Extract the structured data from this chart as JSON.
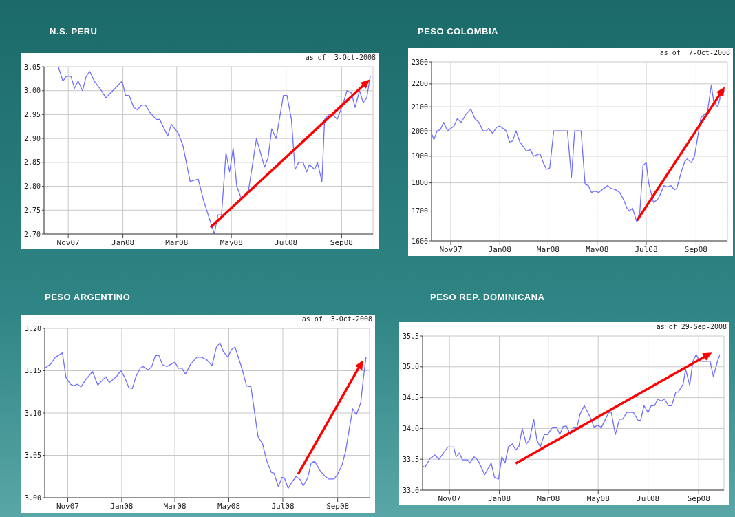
{
  "chart_data": [
    {
      "type": "line",
      "title": "N.S. PERU",
      "annotations": [
        "as of  3-Oct-2008"
      ],
      "xlim": [
        "2007-10-05",
        "2008-10-06"
      ],
      "xticks": [
        {
          "value": "2007-11-01",
          "label": "Nov07"
        },
        {
          "value": "2008-01-01",
          "label": "Jan08"
        },
        {
          "value": "2008-03-01",
          "label": "Mar08"
        },
        {
          "value": "2008-05-01",
          "label": "May08"
        },
        {
          "value": "2008-07-01",
          "label": "Jul08"
        },
        {
          "value": "2008-09-01",
          "label": "Sep08"
        }
      ],
      "ylim": [
        2.7,
        3.05
      ],
      "yticks": [
        {
          "value": 2.7,
          "label": "2.70"
        },
        {
          "value": 2.75,
          "label": "2.75"
        },
        {
          "value": 2.8,
          "label": "2.80"
        },
        {
          "value": 2.85,
          "label": "2.85"
        },
        {
          "value": 2.9,
          "label": "2.90"
        },
        {
          "value": 2.95,
          "label": "2.95"
        },
        {
          "value": 3.0,
          "label": "3.00"
        },
        {
          "value": 3.05,
          "label": "3.05"
        }
      ],
      "grid": true,
      "marker": "none",
      "series": [
        {
          "color": "#6f6fff",
          "x": [
            "2007-10-06",
            "2007-10-21",
            "2007-10-26",
            "2007-10-30",
            "2007-11-04",
            "2007-11-08",
            "2007-11-12",
            "2007-11-17",
            "2007-11-21",
            "2007-11-25",
            "2007-11-30",
            "2007-12-08",
            "2007-12-13",
            "2007-12-18",
            "2007-12-26",
            "2007-12-31",
            "2008-01-04",
            "2008-01-08",
            "2008-01-13",
            "2008-01-17",
            "2008-01-22",
            "2008-01-26",
            "2008-01-31",
            "2008-02-07",
            "2008-02-11",
            "2008-02-20",
            "2008-02-24",
            "2008-03-03",
            "2008-03-08",
            "2008-03-16",
            "2008-03-25",
            "2008-03-31",
            "2008-04-12",
            "2008-04-16",
            "2008-04-20",
            "2008-04-25",
            "2008-04-29",
            "2008-05-03",
            "2008-05-07",
            "2008-05-12",
            "2008-05-20",
            "2008-05-29",
            "2008-06-07",
            "2008-06-11",
            "2008-06-15",
            "2008-06-20",
            "2008-06-28",
            "2008-07-02",
            "2008-07-07",
            "2008-07-11",
            "2008-07-15",
            "2008-07-20",
            "2008-07-24",
            "2008-07-27",
            "2008-08-02",
            "2008-08-05",
            "2008-08-10",
            "2008-08-13",
            "2008-08-18",
            "2008-08-22",
            "2008-08-27",
            "2008-09-03",
            "2008-09-07",
            "2008-09-12",
            "2008-09-16",
            "2008-09-21",
            "2008-09-25",
            "2008-09-29",
            "2008-10-03"
          ],
          "values": [
            3.05,
            3.05,
            3.02,
            3.03,
            3.03,
            3.005,
            3.02,
            3.0,
            3.03,
            3.04,
            3.02,
            3.0,
            2.985,
            2.995,
            3.01,
            3.02,
            2.99,
            2.99,
            2.965,
            2.96,
            2.97,
            2.97,
            2.955,
            2.94,
            2.94,
            2.905,
            2.93,
            2.91,
            2.885,
            2.81,
            2.815,
            2.77,
            2.7,
            2.74,
            2.74,
            2.87,
            2.83,
            2.88,
            2.8,
            2.775,
            2.79,
            2.9,
            2.84,
            2.86,
            2.92,
            2.9,
            2.99,
            2.99,
            2.94,
            2.835,
            2.85,
            2.85,
            2.83,
            2.845,
            2.835,
            2.85,
            2.81,
            2.94,
            2.95,
            2.95,
            2.94,
            2.975,
            3.0,
            2.995,
            2.965,
            3.0,
            2.975,
            2.985,
            3.03
          ]
        }
      ]
    },
    {
      "type": "line",
      "title": "PESO COLOMBIA",
      "annotations": [
        "as of  7-Oct-2008"
      ],
      "xlim": [
        "2007-10-08",
        "2008-10-10"
      ],
      "xticks": [
        {
          "value": "2007-11-01",
          "label": "Nov07"
        },
        {
          "value": "2008-01-01",
          "label": "Jan08"
        },
        {
          "value": "2008-03-01",
          "label": "Mar08"
        },
        {
          "value": "2008-05-01",
          "label": "May08"
        },
        {
          "value": "2008-07-01",
          "label": "Jul08"
        },
        {
          "value": "2008-09-01",
          "label": "Sep08"
        }
      ],
      "ylim": [
        1600,
        2300
      ],
      "yticks": [
        1600,
        1700,
        1800,
        1900,
        2000,
        2100,
        2200,
        2300
      ],
      "log": "y",
      "grid": true,
      "marker": "none",
      "series": [
        {
          "color": "#6f6fff",
          "x": [
            "2007-10-08",
            "2007-10-11",
            "2007-10-15",
            "2007-10-19",
            "2007-10-23",
            "2007-10-28",
            "2007-11-05",
            "2007-11-09",
            "2007-11-14",
            "2007-11-20",
            "2007-11-26",
            "2007-12-01",
            "2007-12-06",
            "2007-12-11",
            "2007-12-15",
            "2007-12-18",
            "2007-12-23",
            "2007-12-28",
            "2008-01-01",
            "2008-01-09",
            "2008-01-13",
            "2008-01-17",
            "2008-01-21",
            "2008-01-26",
            "2008-02-03",
            "2008-02-08",
            "2008-02-12",
            "2008-02-20",
            "2008-02-24",
            "2008-02-28",
            "2008-03-03",
            "2008-03-08",
            "2008-03-25",
            "2008-03-30",
            "2008-04-03",
            "2008-04-11",
            "2008-04-16",
            "2008-04-20",
            "2008-04-24",
            "2008-04-28",
            "2008-05-03",
            "2008-05-07",
            "2008-05-14",
            "2008-05-18",
            "2008-05-24",
            "2008-05-29",
            "2008-06-02",
            "2008-06-07",
            "2008-06-10",
            "2008-06-14",
            "2008-06-19",
            "2008-06-23",
            "2008-06-27",
            "2008-07-01",
            "2008-07-04",
            "2008-07-10",
            "2008-07-15",
            "2008-07-18",
            "2008-07-23",
            "2008-07-27",
            "2008-08-01",
            "2008-08-05",
            "2008-08-08",
            "2008-08-14",
            "2008-08-18",
            "2008-08-21",
            "2008-08-26",
            "2008-08-30",
            "2008-09-03",
            "2008-09-07",
            "2008-09-12",
            "2008-09-15",
            "2008-09-20",
            "2008-09-23",
            "2008-09-28",
            "2008-10-01",
            "2008-10-06"
          ],
          "values": [
            1990,
            1965,
            2000,
            2005,
            2035,
            2000,
            2020,
            2050,
            2035,
            2070,
            2090,
            2050,
            2035,
            2000,
            2000,
            2010,
            1990,
            2015,
            2020,
            2000,
            1955,
            1960,
            2000,
            1955,
            1920,
            1925,
            1900,
            1910,
            1875,
            1850,
            1855,
            2000,
            2000,
            1820,
            2000,
            2000,
            1795,
            1790,
            1765,
            1770,
            1765,
            1775,
            1790,
            1780,
            1775,
            1765,
            1745,
            1710,
            1700,
            1710,
            1665,
            1695,
            1865,
            1875,
            1800,
            1730,
            1740,
            1755,
            1790,
            1785,
            1790,
            1775,
            1780,
            1845,
            1880,
            1890,
            1875,
            1900,
            1975,
            2055,
            2070,
            2075,
            2195,
            2120,
            2100,
            2140,
            2170
          ]
        }
      ]
    },
    {
      "type": "line",
      "title": "PESO ARGENTINO",
      "annotations": [
        "as of  3-Oct-2008"
      ],
      "xlim": [
        "2007-10-06",
        "2008-10-07"
      ],
      "xticks": [
        {
          "value": "2007-11-01",
          "label": "Nov07"
        },
        {
          "value": "2008-01-01",
          "label": "Jan08"
        },
        {
          "value": "2008-03-01",
          "label": "Mar08"
        },
        {
          "value": "2008-05-01",
          "label": "May08"
        },
        {
          "value": "2008-07-01",
          "label": "Jul08"
        },
        {
          "value": "2008-09-01",
          "label": "Sep08"
        }
      ],
      "ylim": [
        3.0,
        3.2
      ],
      "yticks": [
        {
          "value": 3.0,
          "label": "3.00"
        },
        {
          "value": 3.05,
          "label": "3.05"
        },
        {
          "value": 3.1,
          "label": "3.10"
        },
        {
          "value": 3.15,
          "label": "3.15"
        },
        {
          "value": 3.2,
          "label": "3.20"
        }
      ],
      "grid": true,
      "marker": "none",
      "series": [
        {
          "color": "#6f6fff",
          "x": [
            "2007-10-06",
            "2007-10-13",
            "2007-10-18",
            "2007-10-26",
            "2007-10-30",
            "2007-11-04",
            "2007-11-08",
            "2007-11-12",
            "2007-11-16",
            "2007-11-21",
            "2007-11-29",
            "2007-12-05",
            "2007-12-14",
            "2007-12-18",
            "2007-12-26",
            "2007-12-31",
            "2008-01-04",
            "2008-01-09",
            "2008-01-13",
            "2008-01-17",
            "2008-01-22",
            "2008-01-25",
            "2008-01-31",
            "2008-02-04",
            "2008-02-08",
            "2008-02-12",
            "2008-02-16",
            "2008-02-21",
            "2008-02-28",
            "2008-03-01",
            "2008-03-05",
            "2008-03-09",
            "2008-03-13",
            "2008-03-19",
            "2008-03-26",
            "2008-03-31",
            "2008-04-06",
            "2008-04-12",
            "2008-04-17",
            "2008-04-21",
            "2008-04-25",
            "2008-04-30",
            "2008-05-04",
            "2008-05-08",
            "2008-05-16",
            "2008-05-21",
            "2008-05-26",
            "2008-06-03",
            "2008-06-08",
            "2008-06-13",
            "2008-06-18",
            "2008-06-21",
            "2008-06-26",
            "2008-06-30",
            "2008-07-03",
            "2008-07-07",
            "2008-07-11",
            "2008-07-16",
            "2008-07-21",
            "2008-07-24",
            "2008-07-29",
            "2008-08-02",
            "2008-08-06",
            "2008-08-12",
            "2008-08-17",
            "2008-08-22",
            "2008-08-28",
            "2008-09-01",
            "2008-09-06",
            "2008-09-10",
            "2008-09-14",
            "2008-09-18",
            "2008-09-22",
            "2008-09-27",
            "2008-09-30",
            "2008-10-03"
          ],
          "values": [
            3.153,
            3.158,
            3.166,
            3.171,
            3.142,
            3.134,
            3.132,
            3.134,
            3.131,
            3.139,
            3.149,
            3.133,
            3.143,
            3.136,
            3.143,
            3.15,
            3.143,
            3.13,
            3.129,
            3.143,
            3.153,
            3.155,
            3.151,
            3.155,
            3.168,
            3.168,
            3.157,
            3.155,
            3.159,
            3.16,
            3.153,
            3.153,
            3.146,
            3.158,
            3.166,
            3.166,
            3.163,
            3.156,
            3.178,
            3.183,
            3.172,
            3.166,
            3.175,
            3.178,
            3.152,
            3.132,
            3.131,
            3.072,
            3.064,
            3.043,
            3.03,
            3.029,
            3.013,
            3.024,
            3.023,
            3.011,
            3.018,
            3.025,
            3.021,
            3.014,
            3.023,
            3.041,
            3.043,
            3.032,
            3.026,
            3.022,
            3.022,
            3.028,
            3.039,
            3.055,
            3.081,
            3.105,
            3.098,
            3.112,
            3.141,
            3.166
          ]
        }
      ]
    },
    {
      "type": "line",
      "title": "PESO REP. DOMINICANA",
      "annotations": [
        "as of 29-Sep-2008"
      ],
      "xlim": [
        "2007-09-29",
        "2008-10-02"
      ],
      "xticks": [
        {
          "value": "2007-11-01",
          "label": "Nov07"
        },
        {
          "value": "2008-01-01",
          "label": "Jan08"
        },
        {
          "value": "2008-03-01",
          "label": "Mar08"
        },
        {
          "value": "2008-05-01",
          "label": "May08"
        },
        {
          "value": "2008-07-01",
          "label": "Jul08"
        },
        {
          "value": "2008-09-01",
          "label": "Sep08"
        }
      ],
      "ylim": [
        33.0,
        35.5
      ],
      "yticks": [
        {
          "value": 33.0,
          "label": "33.0"
        },
        {
          "value": 33.5,
          "label": "33.5"
        },
        {
          "value": 34.0,
          "label": "34.0"
        },
        {
          "value": 34.5,
          "label": "34.5"
        },
        {
          "value": 35.0,
          "label": "35.0"
        },
        {
          "value": 35.5,
          "label": "35.5"
        }
      ],
      "grid": true,
      "marker": "none",
      "series": [
        {
          "color": "#6f6fff",
          "x": [
            "2007-09-29",
            "2007-10-02",
            "2007-10-08",
            "2007-10-14",
            "2007-10-19",
            "2007-10-30",
            "2007-11-06",
            "2007-11-09",
            "2007-11-13",
            "2007-11-17",
            "2007-11-23",
            "2007-11-26",
            "2007-12-01",
            "2007-12-06",
            "2007-12-14",
            "2007-12-22",
            "2007-12-26",
            "2007-12-31",
            "2008-01-04",
            "2008-01-08",
            "2008-01-12",
            "2008-01-17",
            "2008-01-21",
            "2008-01-25",
            "2008-01-29",
            "2008-02-03",
            "2008-02-07",
            "2008-02-12",
            "2008-02-16",
            "2008-02-20",
            "2008-02-25",
            "2008-02-29",
            "2008-03-06",
            "2008-03-11",
            "2008-03-15",
            "2008-03-19",
            "2008-03-23",
            "2008-03-28",
            "2008-04-01",
            "2008-04-05",
            "2008-04-09",
            "2008-04-14",
            "2008-04-21",
            "2008-04-26",
            "2008-04-30",
            "2008-05-05",
            "2008-05-14",
            "2008-05-17",
            "2008-05-22",
            "2008-05-27",
            "2008-05-31",
            "2008-06-05",
            "2008-06-13",
            "2008-06-19",
            "2008-06-22",
            "2008-06-26",
            "2008-07-01",
            "2008-07-05",
            "2008-07-09",
            "2008-07-13",
            "2008-07-17",
            "2008-07-21",
            "2008-07-26",
            "2008-07-30",
            "2008-08-04",
            "2008-08-07",
            "2008-08-13",
            "2008-08-16",
            "2008-08-21",
            "2008-08-25",
            "2008-08-29",
            "2008-09-02",
            "2008-09-15",
            "2008-09-19",
            "2008-09-24",
            "2008-09-27"
          ],
          "values": [
            33.39,
            33.37,
            33.51,
            33.57,
            33.5,
            33.7,
            33.7,
            33.54,
            33.6,
            33.49,
            33.49,
            33.44,
            33.54,
            33.48,
            33.25,
            33.44,
            33.21,
            33.18,
            33.54,
            33.44,
            33.7,
            33.75,
            33.65,
            33.71,
            34.0,
            33.75,
            33.82,
            34.15,
            33.81,
            33.7,
            33.9,
            33.9,
            34.02,
            34.02,
            33.9,
            34.03,
            34.04,
            33.9,
            34.02,
            34.02,
            34.24,
            34.37,
            34.19,
            34.02,
            34.05,
            34.02,
            34.26,
            34.26,
            33.9,
            34.15,
            34.15,
            34.26,
            34.26,
            34.13,
            34.13,
            34.37,
            34.26,
            34.37,
            34.37,
            34.48,
            34.44,
            34.48,
            34.37,
            34.37,
            34.59,
            34.59,
            34.72,
            34.96,
            34.7,
            35.09,
            35.2,
            35.09,
            35.09,
            34.84,
            35.09,
            35.2
          ]
        }
      ]
    }
  ]
}
